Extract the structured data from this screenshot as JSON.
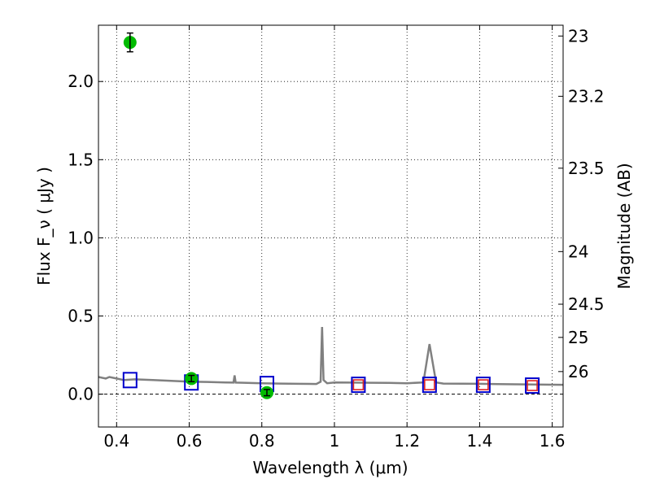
{
  "chart_data": {
    "type": "scatter",
    "title": "",
    "xlabel": "Wavelength  λ (μm)",
    "ylabel": "Flux  F_ν  ( μJy )",
    "ylabel_right": "Magnitude (AB)",
    "xlim": [
      0.35,
      1.63
    ],
    "ylim": [
      -0.21,
      2.36
    ],
    "grid": true,
    "colors": {
      "spectrum": "#808080",
      "observed": "#00bb00",
      "model_blue": "#0000cc",
      "model_red": "#dd2222"
    },
    "x_ticks": [
      {
        "value": 0.4,
        "label": "0.4"
      },
      {
        "value": 0.6,
        "label": "0.6"
      },
      {
        "value": 0.8,
        "label": "0.8"
      },
      {
        "value": 1.0,
        "label": "1"
      },
      {
        "value": 1.2,
        "label": "1.2"
      },
      {
        "value": 1.4,
        "label": "1.4"
      },
      {
        "value": 1.6,
        "label": "1.6"
      }
    ],
    "y_ticks": [
      {
        "value": 0.0,
        "label": "0.0"
      },
      {
        "value": 0.5,
        "label": "0.5"
      },
      {
        "value": 1.0,
        "label": "1.0"
      },
      {
        "value": 1.5,
        "label": "1.5"
      },
      {
        "value": 2.0,
        "label": "2.0"
      }
    ],
    "magnitude_ticks": [
      {
        "value": 23,
        "label": "23"
      },
      {
        "value": 23.2,
        "label": "23.2"
      },
      {
        "value": 23.5,
        "label": "23.5"
      },
      {
        "value": 24,
        "label": "24"
      },
      {
        "value": 24.5,
        "label": "24.5"
      },
      {
        "value": 25,
        "label": "25"
      },
      {
        "value": 26,
        "label": "26"
      }
    ],
    "spectrum": {
      "x": [
        0.35,
        0.37,
        0.38,
        0.4,
        0.42,
        0.45,
        0.5,
        0.55,
        0.6,
        0.65,
        0.7,
        0.722,
        0.725,
        0.728,
        0.75,
        0.8,
        0.85,
        0.9,
        0.95,
        0.962,
        0.966,
        0.97,
        0.98,
        1.0,
        1.05,
        1.1,
        1.15,
        1.2,
        1.245,
        1.262,
        1.28,
        1.3,
        1.35,
        1.4,
        1.45,
        1.5,
        1.55,
        1.63
      ],
      "y": [
        0.11,
        0.1,
        0.11,
        0.1,
        0.09,
        0.095,
        0.09,
        0.085,
        0.08,
        0.078,
        0.075,
        0.074,
        0.12,
        0.074,
        0.073,
        0.07,
        0.068,
        0.066,
        0.065,
        0.08,
        0.43,
        0.09,
        0.07,
        0.075,
        0.074,
        0.073,
        0.072,
        0.07,
        0.075,
        0.32,
        0.075,
        0.068,
        0.067,
        0.066,
        0.064,
        0.063,
        0.062,
        0.06
      ]
    },
    "observed": {
      "x": [
        0.437,
        0.606,
        0.814
      ],
      "y": [
        2.25,
        0.1,
        0.01
      ],
      "yerr": [
        0.06,
        0.02,
        0.02
      ]
    },
    "model_blue": {
      "x": [
        0.437,
        0.606,
        0.814,
        1.066,
        1.262,
        1.41,
        1.545
      ],
      "y": [
        0.09,
        0.075,
        0.065,
        0.06,
        0.06,
        0.06,
        0.055
      ]
    },
    "model_red": {
      "x": [
        1.066,
        1.262,
        1.41,
        1.545
      ],
      "y": [
        0.06,
        0.06,
        0.06,
        0.055
      ]
    }
  }
}
